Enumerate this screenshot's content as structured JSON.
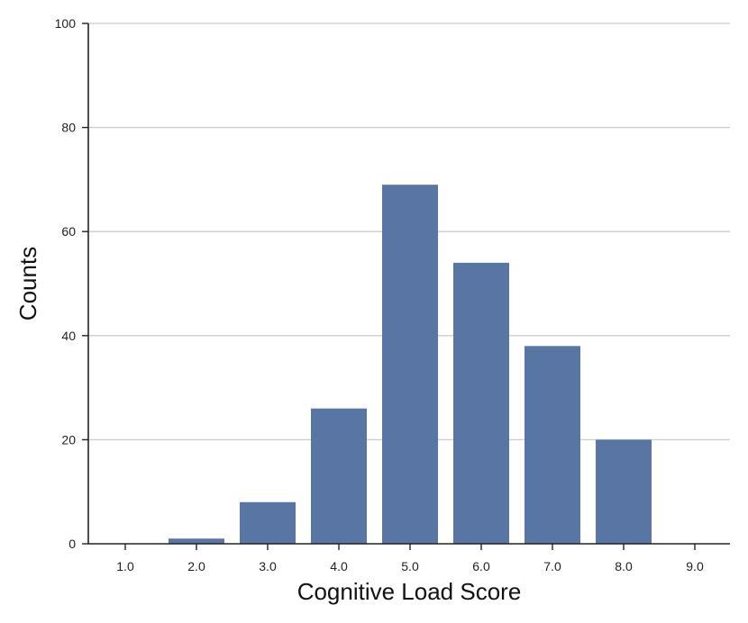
{
  "chart_data": {
    "type": "bar",
    "categories": [
      "1.0",
      "2.0",
      "3.0",
      "4.0",
      "5.0",
      "6.0",
      "7.0",
      "8.0",
      "9.0"
    ],
    "values": [
      0,
      1,
      8,
      26,
      69,
      54,
      38,
      20,
      0
    ],
    "xlabel": "Cognitive Load Score",
    "ylabel": "Counts",
    "ylim": [
      0,
      100
    ],
    "yticks": [
      0,
      20,
      40,
      60,
      80,
      100
    ],
    "grid": "horizontal",
    "bar_color": "#5975a4",
    "legend": "none"
  }
}
